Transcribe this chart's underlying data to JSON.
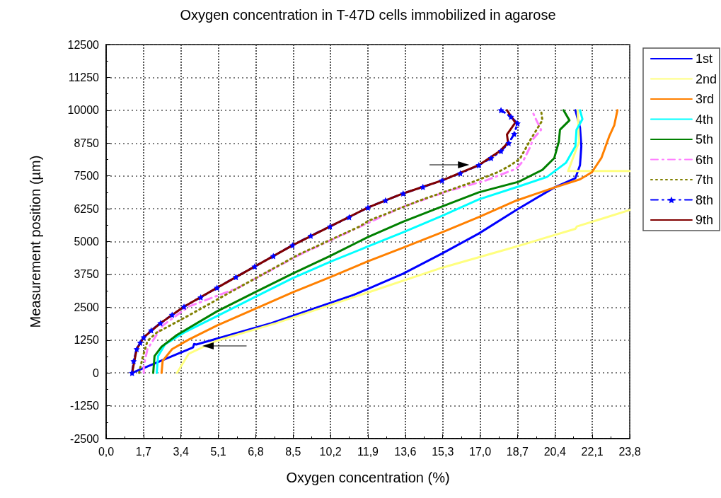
{
  "chart_data": {
    "type": "line",
    "title": "Oxygen concentration in T-47D cells immobilized in agarose",
    "xlabel": "Oxygen concentration (%)",
    "ylabel": "Measurement position (µm)",
    "xlim": [
      0,
      23.8
    ],
    "xticks": [
      {
        "value": 0,
        "label": "0,0"
      },
      {
        "value": 1.7,
        "label": "1,7"
      },
      {
        "value": 3.4,
        "label": "3,4"
      },
      {
        "value": 5.1,
        "label": "5,1"
      },
      {
        "value": 6.8,
        "label": "6,8"
      },
      {
        "value": 8.5,
        "label": "8,5"
      },
      {
        "value": 10.2,
        "label": "10,2"
      },
      {
        "value": 11.9,
        "label": "11,9"
      },
      {
        "value": 13.6,
        "label": "13,6"
      },
      {
        "value": 15.3,
        "label": "15,3"
      },
      {
        "value": 17.0,
        "label": "17,0"
      },
      {
        "value": 18.7,
        "label": "18,7"
      },
      {
        "value": 20.4,
        "label": "20,4"
      },
      {
        "value": 22.1,
        "label": "22,1"
      },
      {
        "value": 23.8,
        "label": "23,8"
      }
    ],
    "ylim": [
      -2500,
      12500
    ],
    "yticks": [
      -2500,
      -1250,
      0,
      1250,
      2500,
      3750,
      5000,
      6250,
      7500,
      8750,
      10000,
      11250,
      12500
    ],
    "grid": true,
    "legend": "top right",
    "marker": "none",
    "line_style": "solid",
    "series": [
      {
        "name": "1st",
        "color": "#0000ff",
        "x": [
          1.18,
          3.95,
          4.0,
          4.1,
          7.5,
          11.25,
          11.9,
          13.5,
          15.27,
          16.94,
          18.65,
          20.37,
          21.33,
          21.54,
          21.6,
          21.54,
          21.33
        ],
        "values": [
          0,
          970,
          1100,
          1080,
          1893,
          2971,
          3196,
          3779,
          4544,
          5306,
          6203,
          7056,
          7415,
          7910,
          8627,
          9346,
          10000
        ]
      },
      {
        "name": "2nd",
        "color": "#ffff80",
        "x": [
          3.22,
          3.75,
          5.04,
          7.72,
          11.25,
          11.9,
          15.27,
          18.65,
          21.33,
          21.4,
          22.61,
          23.8,
          null,
          23.8,
          21.0,
          21.22,
          21.5,
          21.43
        ],
        "values": [
          0,
          727,
          1230,
          1893,
          2882,
          3062,
          4005,
          4813,
          5486,
          5575,
          5889,
          6203,
          null,
          7685,
          7685,
          8179,
          8807,
          10000
        ]
      },
      {
        "name": "3rd",
        "color": "#ff8000",
        "x": [
          2.52,
          2.57,
          3.0,
          3.75,
          5.04,
          6.75,
          8.47,
          10.18,
          11.9,
          13.5,
          15.27,
          16.94,
          18.65,
          20.37,
          21.54,
          22.08,
          22.51,
          22.88,
          23.1,
          23.24
        ],
        "values": [
          0,
          458,
          908,
          1266,
          1804,
          2432,
          3062,
          3644,
          4247,
          4767,
          5351,
          5934,
          6563,
          7056,
          7371,
          7640,
          8179,
          9031,
          9436,
          10000
        ]
      },
      {
        "name": "4th",
        "color": "#00ffff",
        "x": [
          2.3,
          2.36,
          2.68,
          3.54,
          5.04,
          6.75,
          8.47,
          10.18,
          11.9,
          13.5,
          15.27,
          16.94,
          18.76,
          20.04,
          20.9,
          21.33,
          21.38,
          21.65,
          21.54
        ],
        "values": [
          0,
          638,
          1086,
          1535,
          2163,
          2882,
          3601,
          4228,
          4813,
          5351,
          5979,
          6607,
          7101,
          7460,
          7999,
          8627,
          9257,
          9660,
          10000
        ]
      },
      {
        "name": "5th",
        "color": "#008000",
        "x": [
          2.14,
          2.2,
          2.52,
          3.22,
          5.04,
          6.75,
          8.47,
          10.18,
          11.9,
          13.5,
          15.27,
          16.94,
          18.76,
          19.83,
          20.37,
          20.58,
          20.63,
          21.06,
          20.79
        ],
        "values": [
          0,
          638,
          997,
          1446,
          2343,
          3062,
          3779,
          4452,
          5171,
          5755,
          6338,
          6876,
          7280,
          7730,
          8179,
          8807,
          9257,
          9615,
          10000
        ]
      },
      {
        "name": "6th",
        "color": "#ff80ff",
        "line_style": "dashed",
        "x": [
          1.71,
          1.71,
          1.88,
          2.57,
          3.75,
          6.0,
          8.79,
          11.79,
          13.4,
          15.54,
          17.26,
          18.65,
          18.97,
          19.29,
          19.4,
          19.77,
          19.56,
          19.35
        ],
        "values": [
          0,
          270,
          908,
          1804,
          2523,
          3240,
          4498,
          5664,
          6294,
          6922,
          7326,
          7775,
          8088,
          8627,
          8896,
          9257,
          9615,
          10000
        ]
      },
      {
        "name": "7th",
        "color": "#808000",
        "line_style": "dotted",
        "x": [
          1.5,
          1.66,
          1.88,
          2.3,
          3.7,
          6.0,
          8.73,
          11.52,
          11.95,
          14.25,
          16.56,
          17.8,
          18.3,
          18.8,
          19.3,
          19.83,
          19.77
        ],
        "values": [
          0,
          592,
          1220,
          1535,
          2163,
          3240,
          4498,
          5575,
          5800,
          6563,
          7236,
          7640,
          7865,
          8140,
          8896,
          9615,
          10000
        ]
      },
      {
        "name": "8th",
        "color": "#0000ff",
        "line_style": "dashed",
        "marker": "star",
        "x": [
          1.18,
          1.25,
          1.39,
          1.55,
          1.71,
          2.05,
          2.47,
          3.0,
          3.54,
          4.3,
          5.04,
          5.9,
          6.75,
          7.6,
          8.47,
          9.3,
          10.18,
          11.05,
          11.9,
          12.7,
          13.5,
          14.4,
          15.27,
          16.1,
          16.94,
          17.5,
          17.95,
          18.3,
          18.55,
          18.7,
          18.4,
          17.95
        ],
        "values": [
          0,
          450,
          908,
          1150,
          1355,
          1620,
          1893,
          2210,
          2523,
          2880,
          3240,
          3650,
          4048,
          4450,
          4856,
          5220,
          5575,
          5930,
          6294,
          6570,
          6832,
          7080,
          7326,
          7600,
          7910,
          8180,
          8449,
          8750,
          9100,
          9500,
          9750,
          10000
        ]
      },
      {
        "name": "9th",
        "color": "#800000",
        "x": [
          1.18,
          1.39,
          1.71,
          2.47,
          3.54,
          5.04,
          6.75,
          8.47,
          10.18,
          11.9,
          13.5,
          15.27,
          16.94,
          17.9,
          18.27,
          18.22,
          18.6,
          18.22
        ],
        "values": [
          0,
          908,
          1355,
          1893,
          2523,
          3240,
          4048,
          4856,
          5575,
          6294,
          6832,
          7326,
          7910,
          8449,
          8761,
          9076,
          9526,
          10000
        ]
      }
    ]
  }
}
